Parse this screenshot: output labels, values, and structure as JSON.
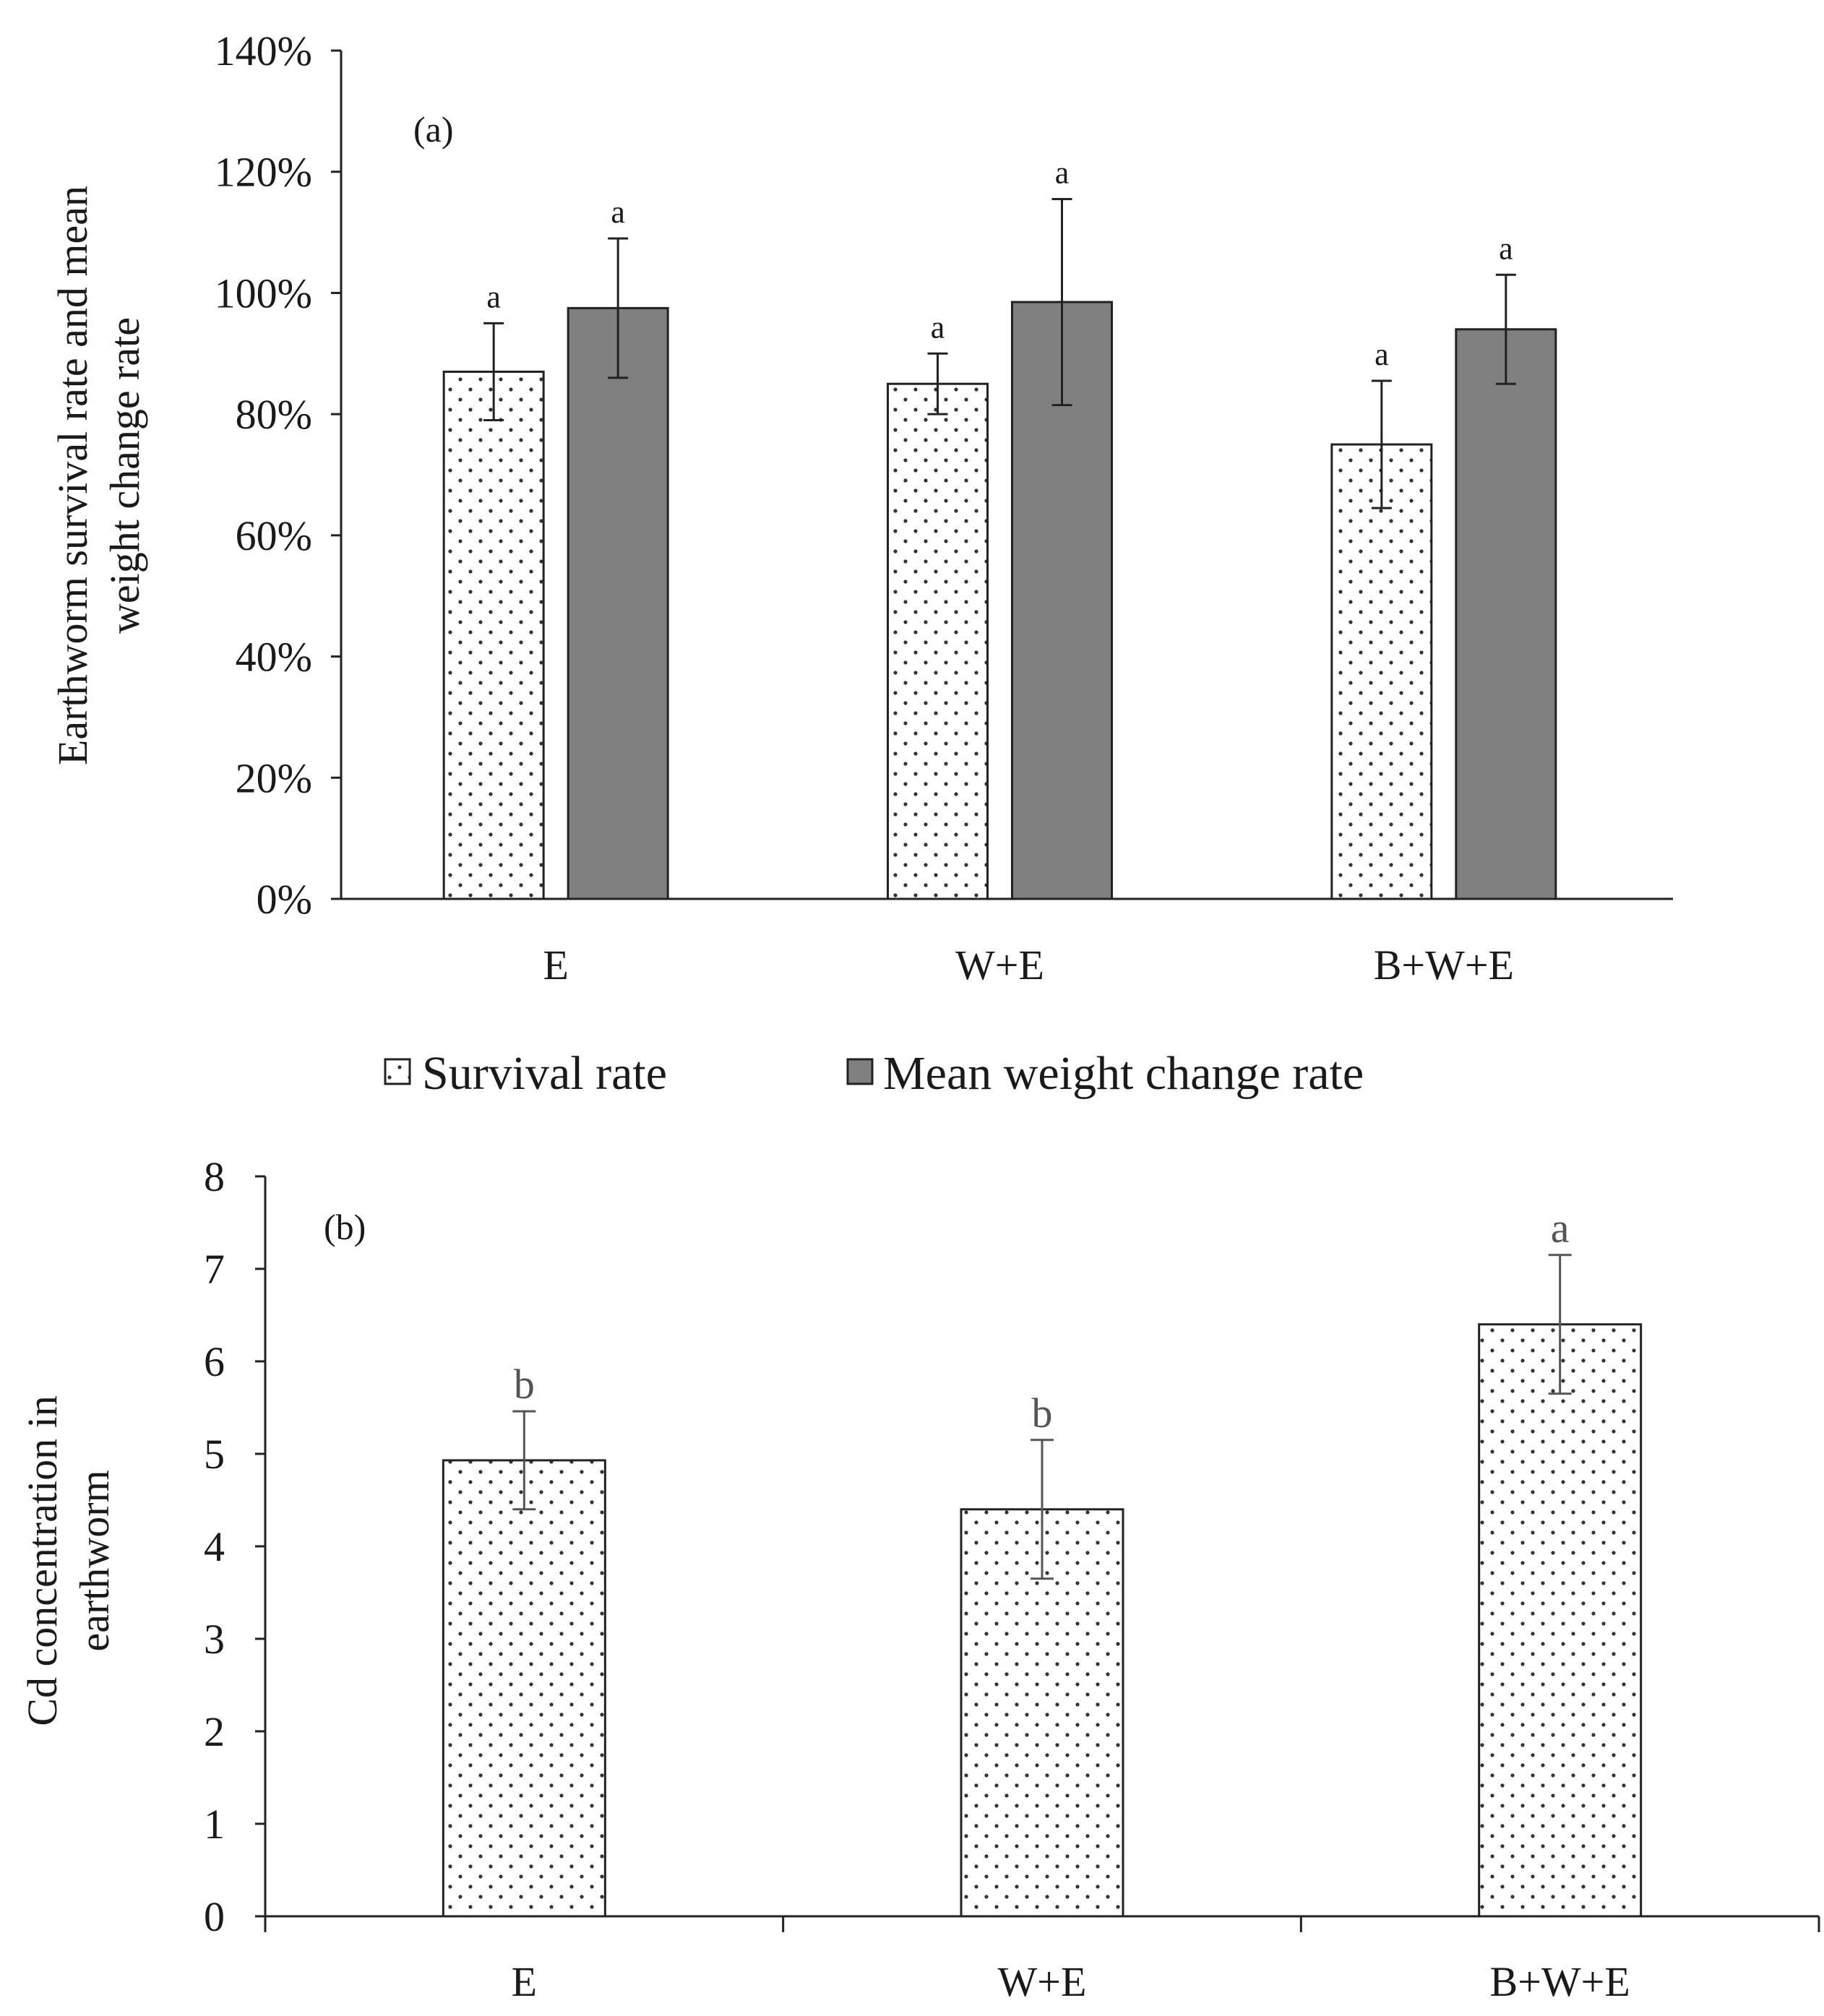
{
  "chart_data": [
    {
      "type": "bar",
      "panel_label": "(a)",
      "title": "",
      "xlabel": "",
      "ylabel_lines": [
        "Earthworm survival rate and mean",
        "weight change rate"
      ],
      "categories": [
        "E",
        "W+E",
        "B+W+E"
      ],
      "yticks": [
        "0%",
        "20%",
        "40%",
        "60%",
        "80%",
        "100%",
        "120%",
        "140%"
      ],
      "ylim": [
        0,
        140
      ],
      "grid": false,
      "series": [
        {
          "name": "Survival rate",
          "values": [
            87,
            85,
            75
          ],
          "errors": [
            8,
            5,
            10.5
          ],
          "letters": [
            "a",
            "a",
            "a"
          ],
          "style": "dotted"
        },
        {
          "name": "Mean weight change rate",
          "values": [
            97.5,
            98.5,
            94
          ],
          "errors": [
            11.5,
            17,
            9
          ],
          "letters": [
            "a",
            "a",
            "a"
          ],
          "style": "gray",
          "color": "#808080"
        }
      ],
      "legend": [
        "Survival rate",
        "Mean weight change rate"
      ],
      "legend_position": "bottom"
    },
    {
      "type": "bar",
      "panel_label": "(b)",
      "title": "",
      "xlabel": "",
      "ylabel_lines": [
        "Cd concentration in",
        "earthworm"
      ],
      "categories": [
        "E",
        "W+E",
        "B+W+E"
      ],
      "yticks": [
        "0",
        "1",
        "2",
        "3",
        "4",
        "5",
        "6",
        "7",
        "8"
      ],
      "ylim": [
        0,
        8
      ],
      "grid": false,
      "series": [
        {
          "name": "Cd concentration",
          "values": [
            4.93,
            4.4,
            6.4
          ],
          "errors": [
            0.53,
            0.75,
            0.75
          ],
          "letters": [
            "b",
            "b",
            "a"
          ],
          "style": "dotted"
        }
      ]
    }
  ]
}
